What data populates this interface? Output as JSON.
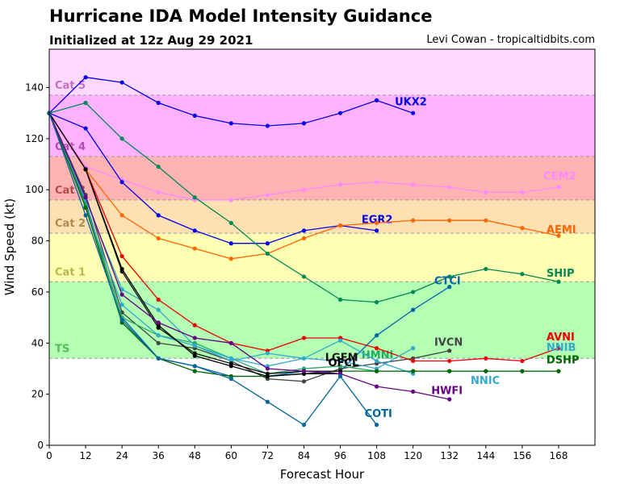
{
  "chart_data": {
    "type": "line",
    "title": "Hurricane IDA Model Intensity Guidance",
    "subtitle": "Initialized at 12z Aug 29 2021",
    "credit": "Levi Cowan - tropicaltidbits.com",
    "xlabel": "Forecast Hour",
    "ylabel": "Wind Speed (kt)",
    "xlim": [
      0,
      180
    ],
    "ylim": [
      0,
      155
    ],
    "xticks": [
      0,
      12,
      24,
      36,
      48,
      60,
      72,
      84,
      96,
      108,
      120,
      132,
      144,
      156,
      168
    ],
    "yticks": [
      0,
      20,
      40,
      60,
      80,
      100,
      120,
      140
    ],
    "grid": false,
    "legend": "none",
    "bands": [
      {
        "label": "TS",
        "from": 34,
        "to": 64,
        "fill": "#b3ffb3",
        "text_color": "#55bb55"
      },
      {
        "label": "Cat 1",
        "from": 64,
        "to": 83,
        "fill": "#ffffb3",
        "text_color": "#b8b84d"
      },
      {
        "label": "Cat 2",
        "from": 83,
        "to": 96,
        "fill": "#ffe0b3",
        "text_color": "#b38a4d"
      },
      {
        "label": "Cat 3",
        "from": 96,
        "to": 113,
        "fill": "#ffb3b3",
        "text_color": "#b34d4d"
      },
      {
        "label": "Cat 4",
        "from": 113,
        "to": 137,
        "fill": "#ffb3ff",
        "text_color": "#b34db3"
      },
      {
        "label": "Cat 5",
        "from": 137,
        "to": 155,
        "fill": "#ffd9ff",
        "text_color": "#bf73bf"
      }
    ],
    "series": [
      {
        "name": "UKX2",
        "color": "#0000ee",
        "x": [
          0,
          12,
          24,
          36,
          48,
          60,
          72,
          84,
          96,
          108,
          120
        ],
        "y": [
          130,
          144,
          142,
          134,
          129,
          126,
          125,
          126,
          130,
          135,
          130
        ],
        "label_x": 114,
        "label_y": 133
      },
      {
        "name": "CEM2",
        "color": "#ff88ff",
        "x": [
          0,
          12,
          24,
          36,
          48,
          60,
          72,
          84,
          96,
          108,
          120,
          132,
          144,
          156,
          168
        ],
        "y": [
          130,
          109,
          104,
          99,
          96,
          96,
          98,
          100,
          102,
          103,
          102,
          101,
          99,
          99,
          101
        ],
        "label_x": 163,
        "label_y": 104
      },
      {
        "name": "EGR2",
        "color": "#0000ee",
        "x": [
          0,
          12,
          24,
          36,
          48,
          60,
          72,
          84,
          96,
          108
        ],
        "y": [
          130,
          124,
          103,
          90,
          84,
          79,
          79,
          84,
          86,
          84
        ],
        "label_x": 103,
        "label_y": 87
      },
      {
        "name": "AEMI",
        "color": "#ff6600",
        "x": [
          0,
          12,
          24,
          36,
          48,
          60,
          72,
          84,
          96,
          108,
          120,
          132,
          144,
          156,
          168
        ],
        "y": [
          130,
          108,
          90,
          81,
          77,
          73,
          75,
          81,
          86,
          87,
          88,
          88,
          88,
          85,
          82
        ],
        "label_x": 164,
        "label_y": 83
      },
      {
        "name": "SHIP",
        "color": "#008855",
        "x": [
          0,
          12,
          24,
          36,
          48,
          60,
          72,
          84,
          96,
          108,
          120,
          132,
          144,
          156,
          168
        ],
        "y": [
          130,
          134,
          120,
          109,
          97,
          87,
          75,
          66,
          57,
          56,
          60,
          66,
          69,
          67,
          64
        ],
        "label_x": 164,
        "label_y": 66
      },
      {
        "name": "CTCI",
        "color": "#0066aa",
        "x": [
          0,
          12,
          24,
          36,
          48,
          60,
          72,
          84,
          96,
          108,
          120,
          132
        ],
        "y": [
          130,
          95,
          50,
          34,
          31,
          27,
          27,
          29,
          29,
          43,
          53,
          62
        ],
        "label_x": 127,
        "label_y": 63
      },
      {
        "name": "IVCN",
        "color": "#444444",
        "x": [
          0,
          12,
          24,
          36,
          48,
          60,
          72,
          84,
          96,
          108,
          120,
          132
        ],
        "y": [
          130,
          98,
          52,
          40,
          38,
          33,
          26,
          25,
          30,
          32,
          34,
          37
        ],
        "label_x": 127,
        "label_y": 39
      },
      {
        "name": "HMNI",
        "color": "#22aa66",
        "x": [
          0,
          12,
          24,
          36,
          48,
          60,
          72,
          84,
          96,
          108,
          120,
          132,
          144,
          156,
          168
        ],
        "y": [
          130,
          94,
          50,
          43,
          40,
          34,
          28,
          30,
          31,
          29,
          29,
          29,
          29,
          29,
          29
        ],
        "label_x": 103,
        "label_y": 34
      },
      {
        "name": "AVNI",
        "color": "#ee0000",
        "x": [
          0,
          12,
          24,
          36,
          48,
          60,
          72,
          84,
          96,
          108,
          120,
          132,
          144,
          156,
          168
        ],
        "y": [
          130,
          108,
          74,
          57,
          47,
          40,
          37,
          42,
          42,
          38,
          33,
          33,
          34,
          33,
          38
        ],
        "label_x": 164,
        "label_y": 41
      },
      {
        "name": "NNIB",
        "color": "#33aacc",
        "x": [
          0,
          12,
          24,
          36,
          48,
          60,
          72,
          84,
          96,
          108,
          120
        ],
        "y": [
          130,
          96,
          61,
          53,
          39,
          33,
          36,
          34,
          41,
          33,
          28
        ],
        "label_x": 164,
        "label_y": 37
      },
      {
        "name": "NNIC",
        "color": "#33aacc",
        "x": [
          0,
          12,
          24,
          36,
          48,
          60,
          72,
          84,
          96,
          108,
          120
        ],
        "y": [
          130,
          93,
          55,
          43,
          39,
          34,
          31,
          34,
          33,
          30,
          38
        ],
        "label_x": 139,
        "label_y": 24
      },
      {
        "name": "DSHP",
        "color": "#006600",
        "x": [
          0,
          12,
          24,
          36,
          48,
          60,
          72,
          84,
          96,
          108,
          120,
          132,
          144,
          156,
          168
        ],
        "y": [
          130,
          93,
          48,
          34,
          29,
          27,
          27,
          28,
          29,
          29,
          29,
          29,
          29,
          29,
          29
        ],
        "label_x": 164,
        "label_y": 32
      },
      {
        "name": "LGEM",
        "color": "#111111",
        "x": [
          0,
          12,
          24,
          36,
          48,
          60,
          72,
          84,
          96
        ],
        "y": [
          130,
          108,
          68,
          46,
          36,
          32,
          28,
          29,
          29
        ],
        "label_x": 91,
        "label_y": 33
      },
      {
        "name": "OFCL",
        "color": "#000000",
        "x": [
          0,
          12,
          24,
          36,
          48,
          60,
          72,
          84,
          96
        ],
        "y": [
          130,
          108,
          69,
          47,
          35,
          31,
          27,
          28,
          28
        ],
        "label_x": 92,
        "label_y": 31
      },
      {
        "name": "HWFI",
        "color": "#660088",
        "x": [
          0,
          12,
          24,
          36,
          48,
          60,
          72,
          84,
          96,
          108,
          120,
          132
        ],
        "y": [
          130,
          97,
          59,
          48,
          42,
          40,
          30,
          29,
          28,
          23,
          21,
          18
        ],
        "label_x": 126,
        "label_y": 20
      },
      {
        "name": "COTI",
        "color": "#006699",
        "x": [
          0,
          12,
          24,
          36,
          48,
          60,
          72,
          84,
          96,
          108
        ],
        "y": [
          130,
          90,
          49,
          34,
          31,
          26,
          17,
          8,
          27,
          8
        ],
        "label_x": 104,
        "label_y": 11
      }
    ]
  }
}
